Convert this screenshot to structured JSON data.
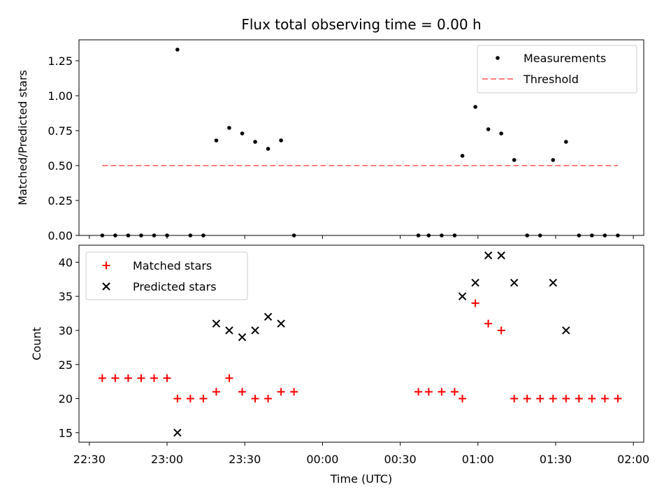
{
  "chart_data": [
    {
      "type": "scatter",
      "title": "Flux total observing time = 0.00 h",
      "xlabel": "",
      "ylabel": "Matched/Predicted stars",
      "ylim": [
        0,
        1.4
      ],
      "yticks": [
        "0.00",
        "0.25",
        "0.50",
        "0.75",
        "1.00",
        "1.25"
      ],
      "ytick_values": [
        0,
        0.25,
        0.5,
        0.75,
        1.0,
        1.25
      ],
      "xlim": [
        "22:26",
        "02:04"
      ],
      "grid": false,
      "legend_position": "top-right",
      "series": [
        {
          "name": "Measurements",
          "color": "#000000",
          "marker": "dot",
          "points": [
            [
              "22:35",
              0
            ],
            [
              "22:40",
              0
            ],
            [
              "22:45",
              0
            ],
            [
              "22:50",
              0
            ],
            [
              "22:55",
              0
            ],
            [
              "23:00",
              0
            ],
            [
              "23:04",
              1.33
            ],
            [
              "23:09",
              0
            ],
            [
              "23:14",
              0
            ],
            [
              "23:19",
              0.68
            ],
            [
              "23:24",
              0.77
            ],
            [
              "23:29",
              0.73
            ],
            [
              "23:34",
              0.67
            ],
            [
              "23:39",
              0.62
            ],
            [
              "23:44",
              0.68
            ],
            [
              "23:49",
              0
            ],
            [
              "00:37",
              0
            ],
            [
              "00:41",
              0
            ],
            [
              "00:46",
              0
            ],
            [
              "00:51",
              0
            ],
            [
              "00:54",
              0.57
            ],
            [
              "00:59",
              0.92
            ],
            [
              "01:04",
              0.76
            ],
            [
              "01:09",
              0.73
            ],
            [
              "01:14",
              0.54
            ],
            [
              "01:19",
              0
            ],
            [
              "01:24",
              0
            ],
            [
              "01:29",
              0.54
            ],
            [
              "01:34",
              0.67
            ],
            [
              "01:39",
              0
            ],
            [
              "01:44",
              0
            ],
            [
              "01:49",
              0
            ],
            [
              "01:54",
              0
            ]
          ]
        },
        {
          "name": "Threshold",
          "color": "#ff7f7f",
          "style": "dashed",
          "points": [
            [
              "22:35",
              0.5
            ],
            [
              "01:54",
              0.5
            ]
          ]
        }
      ]
    },
    {
      "type": "scatter",
      "title": "",
      "xlabel": "Time (UTC)",
      "ylabel": "Count",
      "ylim": [
        13.6,
        42.5
      ],
      "yticks": [
        "15",
        "20",
        "25",
        "30",
        "35",
        "40"
      ],
      "ytick_values": [
        15,
        20,
        25,
        30,
        35,
        40
      ],
      "xlim": [
        "22:26",
        "02:04"
      ],
      "xticks": [
        "22:30",
        "23:00",
        "23:30",
        "00:00",
        "00:30",
        "01:00",
        "01:30",
        "02:00"
      ],
      "grid": false,
      "legend_position": "top-left",
      "series": [
        {
          "name": "Matched stars",
          "color": "#ff0000",
          "marker": "plus",
          "points": [
            [
              "22:35",
              23
            ],
            [
              "22:40",
              23
            ],
            [
              "22:45",
              23
            ],
            [
              "22:50",
              23
            ],
            [
              "22:55",
              23
            ],
            [
              "23:00",
              23
            ],
            [
              "23:04",
              20
            ],
            [
              "23:09",
              20
            ],
            [
              "23:14",
              20
            ],
            [
              "23:19",
              21
            ],
            [
              "23:24",
              23
            ],
            [
              "23:29",
              21
            ],
            [
              "23:34",
              20
            ],
            [
              "23:39",
              20
            ],
            [
              "23:44",
              21
            ],
            [
              "23:49",
              21
            ],
            [
              "00:37",
              21
            ],
            [
              "00:41",
              21
            ],
            [
              "00:46",
              21
            ],
            [
              "00:51",
              21
            ],
            [
              "00:54",
              20
            ],
            [
              "00:59",
              34
            ],
            [
              "01:04",
              31
            ],
            [
              "01:09",
              30
            ],
            [
              "01:14",
              20
            ],
            [
              "01:19",
              20
            ],
            [
              "01:24",
              20
            ],
            [
              "01:29",
              20
            ],
            [
              "01:34",
              20
            ],
            [
              "01:39",
              20
            ],
            [
              "01:44",
              20
            ],
            [
              "01:49",
              20
            ],
            [
              "01:54",
              20
            ]
          ]
        },
        {
          "name": "Predicted stars",
          "color": "#000000",
          "marker": "x",
          "points": [
            [
              "23:04",
              15
            ],
            [
              "23:19",
              31
            ],
            [
              "23:24",
              30
            ],
            [
              "23:29",
              29
            ],
            [
              "23:34",
              30
            ],
            [
              "23:39",
              32
            ],
            [
              "23:44",
              31
            ],
            [
              "00:54",
              35
            ],
            [
              "00:59",
              37
            ],
            [
              "01:04",
              41
            ],
            [
              "01:09",
              41
            ],
            [
              "01:14",
              37
            ],
            [
              "01:29",
              37
            ],
            [
              "01:34",
              30
            ]
          ]
        }
      ]
    }
  ]
}
